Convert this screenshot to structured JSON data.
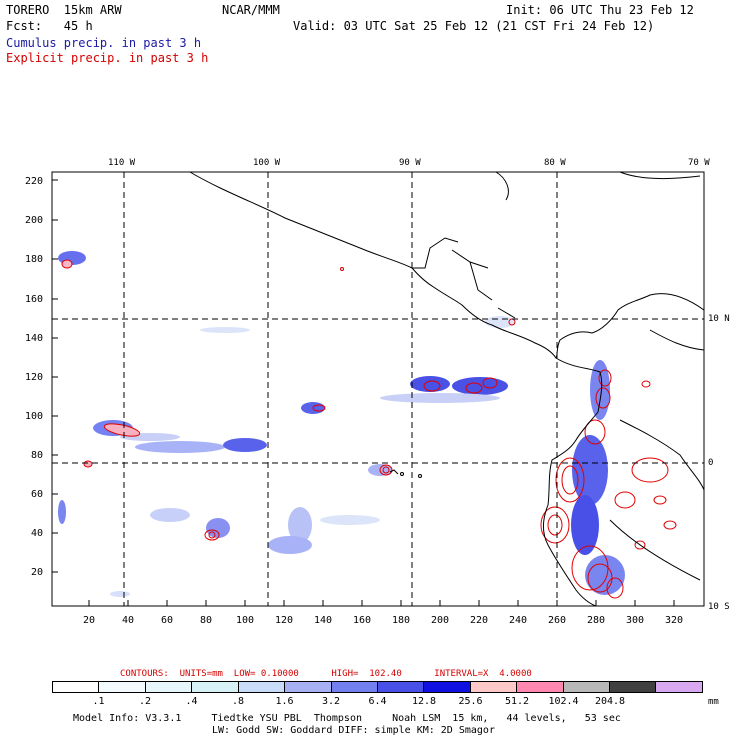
{
  "header": {
    "model": "TORERO  15km ARW",
    "org": "NCAR/MMM",
    "init": "Init: 06 UTC Thu 23 Feb 12",
    "fcst": "Fcst:   45 h",
    "valid": "Valid: 03 UTC Sat 25 Feb 12 (21 CST Fri 24 Feb 12)",
    "line_cumulus": "Cumulus precip. in past 3 h",
    "line_explicit": "Explicit precip. in past 3 h"
  },
  "axes": {
    "top_lon_labels": [
      "110 W",
      "100 W",
      "90 W",
      "80 W",
      "70 W"
    ],
    "right_lat_labels": [
      "10 N",
      "0",
      "10 S"
    ],
    "left_ticks": [
      "220",
      "200",
      "180",
      "160",
      "140",
      "120",
      "100",
      "80",
      "60",
      "40",
      "20"
    ],
    "bottom_ticks": [
      "20",
      "40",
      "60",
      "80",
      "100",
      "120",
      "140",
      "160",
      "180",
      "200",
      "220",
      "240",
      "260",
      "280",
      "300",
      "320"
    ]
  },
  "contour_info": {
    "text": "CONTOURS:  UNITS=mm  LOW= 0.10000      HIGH=  102.40      INTERVAL=X  4.0000"
  },
  "colorbar": {
    "colors": [
      "#ffffff",
      "#f4fbff",
      "#e6f6fa",
      "#d6f2f6",
      "#c8dcf8",
      "#a8b0f4",
      "#7480f0",
      "#4850e8",
      "#1010e0",
      "#ffc8c8",
      "#ff88b0",
      "#b8b8b8",
      "#404040",
      "#d8a8f0"
    ],
    "labels": [
      ".1",
      ".2",
      ".4",
      ".8",
      "1.6",
      "3.2",
      "6.4",
      "12.8",
      "25.6",
      "51.2",
      "102.4",
      "204.8"
    ],
    "unit": "mm"
  },
  "footer": {
    "line1": "Model Info: V3.3.1     Tiedtke YSU PBL  Thompson     Noah LSM  15 km,   44 levels,   53 sec",
    "line2": "LW: Godd SW: Goddard DIFF: simple KM: 2D Smagor"
  }
}
